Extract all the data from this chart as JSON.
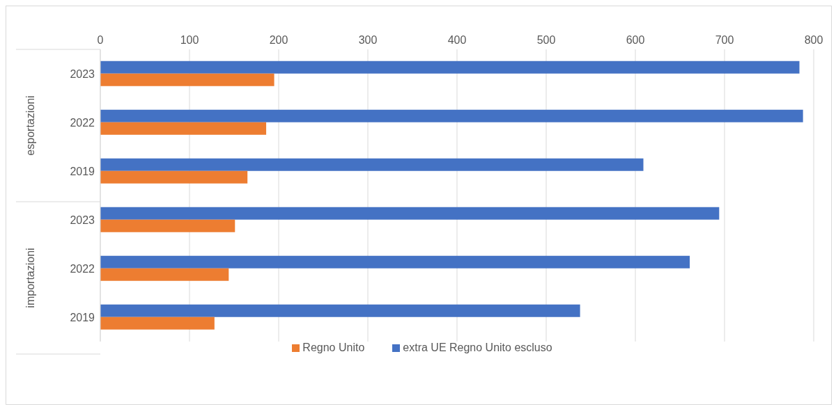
{
  "chart_data": {
    "type": "bar",
    "orientation": "horizontal",
    "categories": [
      "2023",
      "2022",
      "2019",
      "2023",
      "2022",
      "2019"
    ],
    "series": [
      {
        "name": "extra UE Regno Unito escluso",
        "color": "#4472c4",
        "values": [
          784,
          788,
          609,
          694,
          661,
          538
        ]
      },
      {
        "name": "Regno Unito",
        "color": "#ed7d31",
        "values": [
          195,
          186,
          165,
          151,
          144,
          128
        ]
      }
    ],
    "xlim": [
      0,
      800
    ],
    "xticks": [
      0,
      100,
      200,
      300,
      400,
      500,
      600,
      700,
      800
    ],
    "grid": "x",
    "legend": "bottom",
    "annotations": [
      "esportazioni",
      "importazioni"
    ]
  }
}
